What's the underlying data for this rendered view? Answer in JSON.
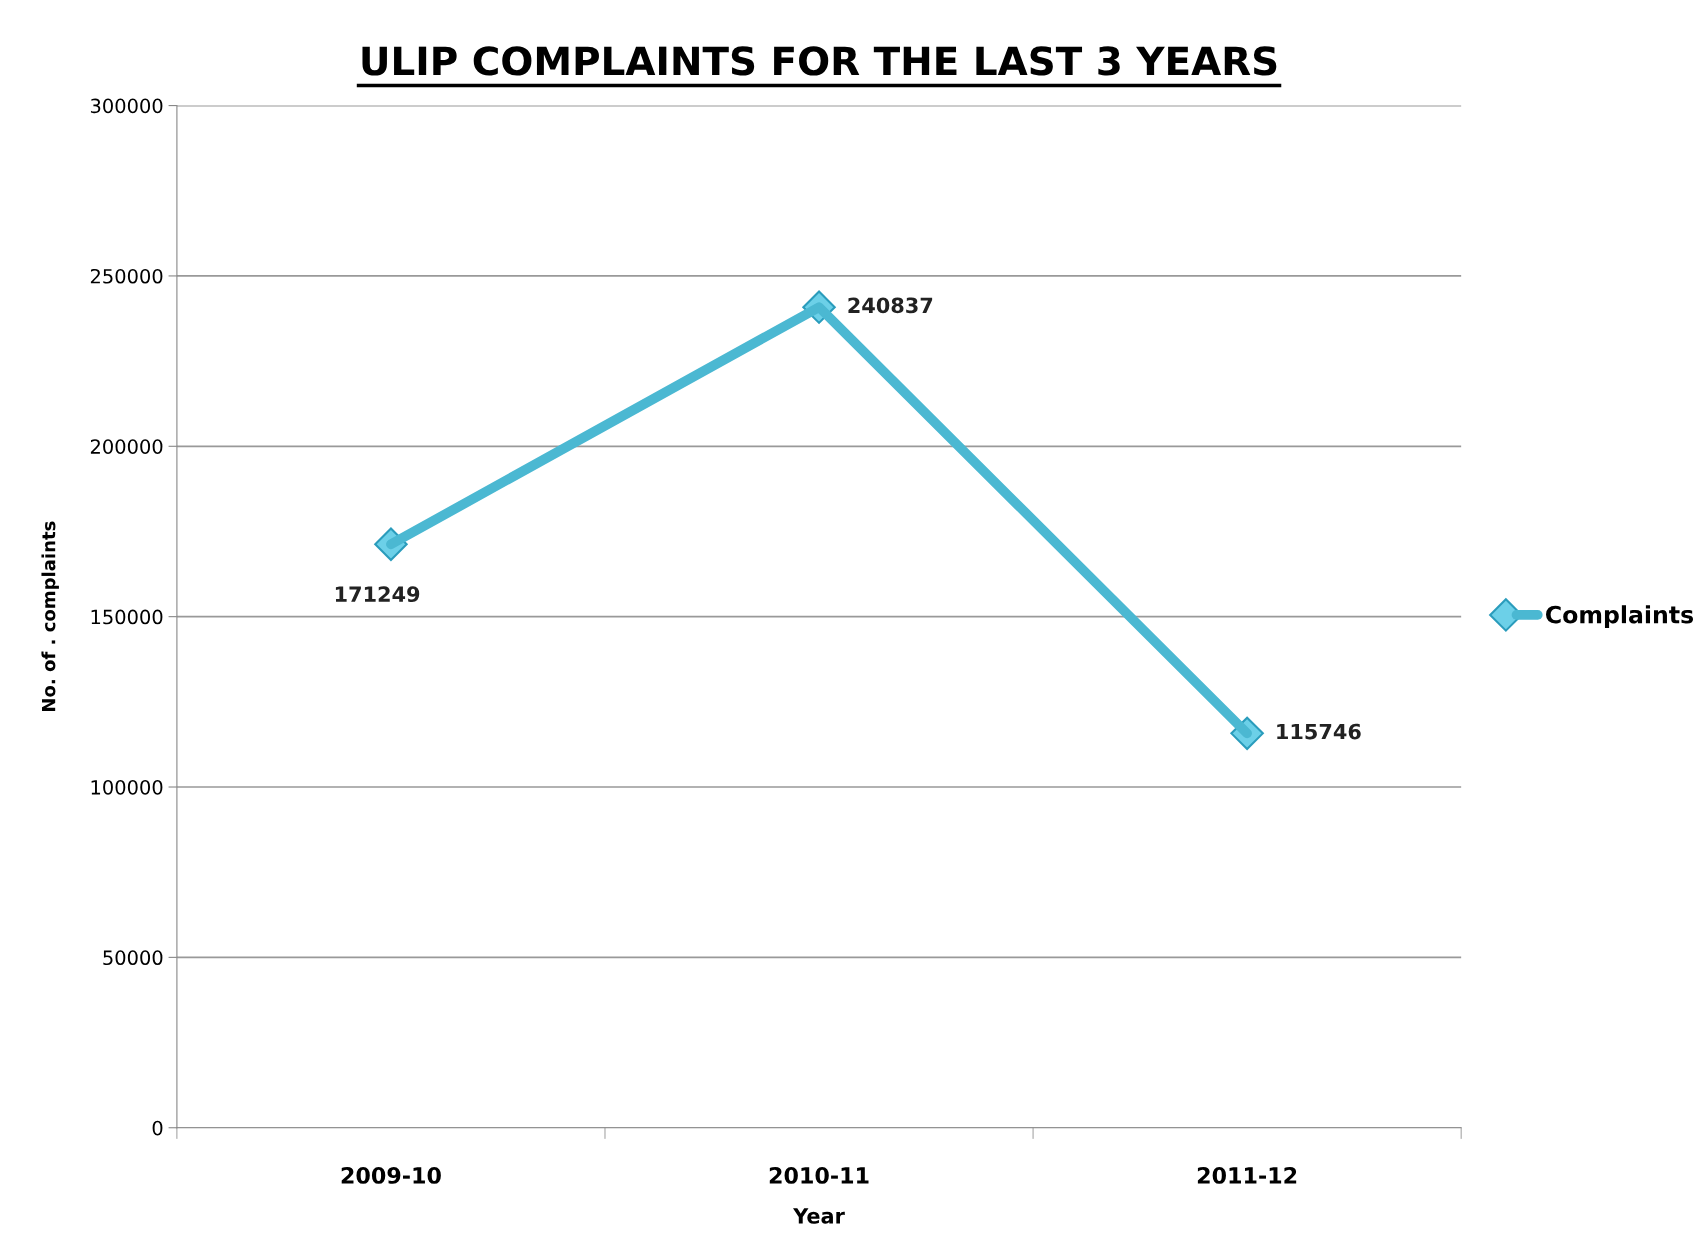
{
  "chart_data": {
    "type": "line",
    "title": "ULIP COMPLAINTS FOR THE LAST 3 YEARS",
    "xlabel": "Year",
    "ylabel": "No. of . complaints",
    "categories": [
      "2009-10",
      "2010-11",
      "2011-12"
    ],
    "series": [
      {
        "name": "Complaints",
        "color": "#4bb8d2",
        "values": [
          171249,
          240837,
          115746
        ]
      }
    ],
    "ylim": [
      0,
      300000
    ],
    "yticks": [
      0,
      50000,
      100000,
      150000,
      200000,
      250000,
      300000
    ],
    "grid": "y",
    "legend": "right",
    "marker": "diamond",
    "line_style": "solid",
    "data_labels": true
  }
}
